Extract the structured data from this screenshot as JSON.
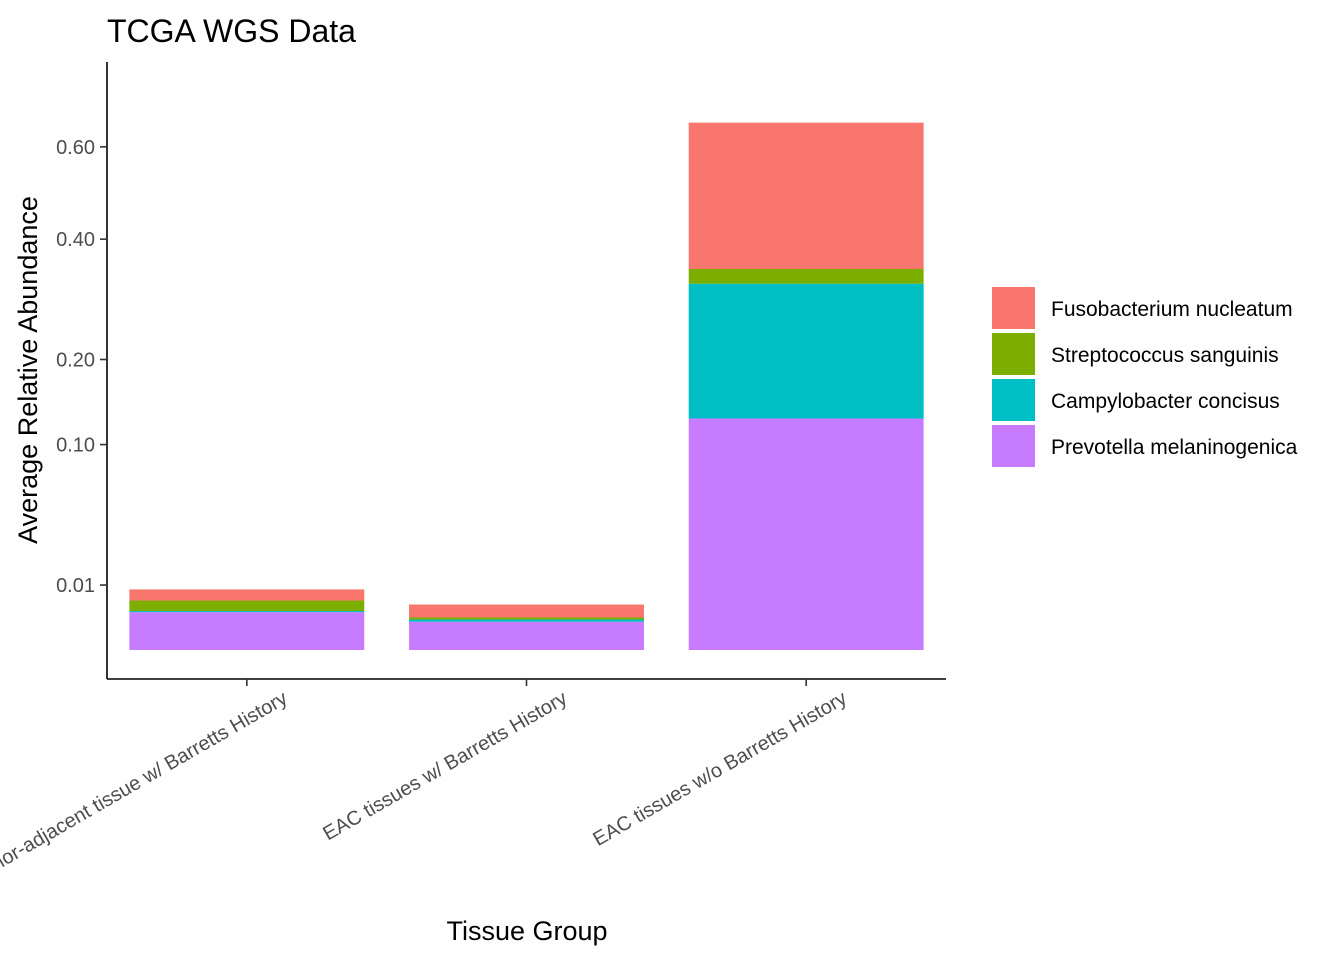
{
  "chart_data": {
    "type": "bar",
    "stacked": true,
    "title": "TCGA WGS Data",
    "xlabel": "Tissue Group",
    "ylabel": "Average Relative Abundance",
    "y_scale": "sqrt",
    "ylim": [
      0,
      0.7
    ],
    "yticks": [
      0.01,
      0.1,
      0.2,
      0.4,
      0.6
    ],
    "ytick_labels": [
      "0.01",
      "0.10",
      "0.20",
      "0.40",
      "0.60"
    ],
    "grid": false,
    "legend_position": "right",
    "categories": [
      "Tumor-adjacent tissue w/ Barretts History",
      "EAC tissues w/ Barretts History",
      "EAC tissues w/o Barretts History"
    ],
    "series": [
      {
        "name": "Prevotella melaninogenica",
        "color": "#C77CFF",
        "values": [
          0.0034,
          0.0019,
          0.127
        ]
      },
      {
        "name": "Campylobacter concisus",
        "color": "#00BFC4",
        "values": [
          0.0002,
          0.0003,
          0.191
        ]
      },
      {
        "name": "Streptococcus sanguinis",
        "color": "#7CAE00",
        "values": [
          0.0022,
          0.0003,
          0.026
        ]
      },
      {
        "name": "Fusobacterium nucleatum",
        "color": "#F8766D",
        "values": [
          0.0029,
          0.0024,
          0.315
        ]
      }
    ],
    "legend_order": [
      "Fusobacterium nucleatum",
      "Streptococcus sanguinis",
      "Campylobacter concisus",
      "Prevotella melaninogenica"
    ]
  }
}
